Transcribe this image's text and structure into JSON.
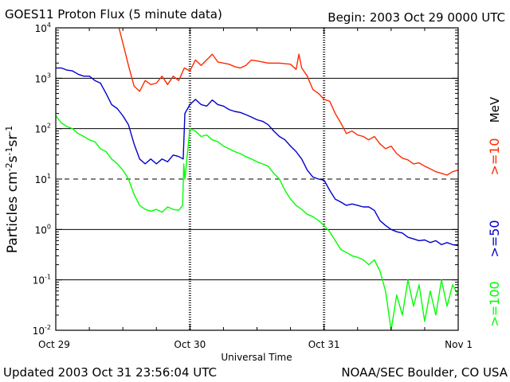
{
  "header": {
    "title": "GOES11 Proton Flux (5 minute data)",
    "begin": "Begin: 2003 Oct 29 0000 UTC"
  },
  "footer": {
    "updated": "Updated 2003 Oct 31 23:56:04 UTC",
    "credit": "NOAA/SEC Boulder, CO USA"
  },
  "chart_data": {
    "type": "line",
    "title": "GOES11 Proton Flux (5 minute data)",
    "xlabel": "Universal Time",
    "ylabel": "Particles cm⁻²s⁻¹sr⁻¹",
    "yscale": "log",
    "ylim": [
      0.01,
      10000
    ],
    "xlim": [
      0,
      72
    ],
    "x_unit": "hours since 2003 Oct 29 0000 UTC",
    "x_ticks": [
      {
        "x": 0,
        "label": "Oct 29"
      },
      {
        "x": 24,
        "label": "Oct 30"
      },
      {
        "x": 48,
        "label": "Oct 31"
      },
      {
        "x": 72,
        "label": "Nov 1"
      }
    ],
    "y_ticks": [
      {
        "y": 10000,
        "mant": "10",
        "exp": "4"
      },
      {
        "y": 1000,
        "mant": "10",
        "exp": "3"
      },
      {
        "y": 100,
        "mant": "10",
        "exp": "2"
      },
      {
        "y": 10,
        "mant": "10",
        "exp": "1"
      },
      {
        "y": 1,
        "mant": "10",
        "exp": "0"
      },
      {
        "y": 0.1,
        "mant": "10",
        "exp": "-1"
      },
      {
        "y": 0.01,
        "mant": "10",
        "exp": "-2"
      }
    ],
    "reference_lines": [
      {
        "y": 1000,
        "style": "solid"
      },
      {
        "y": 100,
        "style": "solid"
      },
      {
        "y": 10,
        "style": "dashed"
      },
      {
        "y": 1,
        "style": "solid"
      },
      {
        "y": 0.1,
        "style": "solid"
      }
    ],
    "units_label": "MeV",
    "series": [
      {
        "name": ">=10",
        "color": "#ff2a00",
        "points": [
          [
            11.3,
            10000
          ],
          [
            12,
            5000
          ],
          [
            13,
            1800
          ],
          [
            14,
            700
          ],
          [
            15,
            550
          ],
          [
            16,
            900
          ],
          [
            17,
            750
          ],
          [
            18,
            800
          ],
          [
            19,
            1100
          ],
          [
            20,
            750
          ],
          [
            21,
            1100
          ],
          [
            22,
            900
          ],
          [
            23,
            1600
          ],
          [
            24,
            1400
          ],
          [
            25,
            2300
          ],
          [
            26,
            1800
          ],
          [
            28,
            3000
          ],
          [
            29,
            2100
          ],
          [
            30,
            2000
          ],
          [
            31,
            1900
          ],
          [
            32,
            1700
          ],
          [
            33,
            1600
          ],
          [
            34,
            1800
          ],
          [
            35,
            2300
          ],
          [
            36,
            2200
          ],
          [
            38,
            2000
          ],
          [
            40,
            2000
          ],
          [
            42,
            1900
          ],
          [
            43,
            1500
          ],
          [
            43.5,
            3000
          ],
          [
            44,
            1600
          ],
          [
            45,
            1100
          ],
          [
            46,
            600
          ],
          [
            47,
            500
          ],
          [
            48,
            380
          ],
          [
            49,
            350
          ],
          [
            50,
            200
          ],
          [
            51,
            130
          ],
          [
            52,
            80
          ],
          [
            53,
            90
          ],
          [
            54,
            75
          ],
          [
            55,
            70
          ],
          [
            56,
            60
          ],
          [
            57,
            70
          ],
          [
            58,
            50
          ],
          [
            59,
            40
          ],
          [
            60,
            45
          ],
          [
            61,
            32
          ],
          [
            62,
            26
          ],
          [
            63,
            24
          ],
          [
            64,
            20
          ],
          [
            65,
            21
          ],
          [
            66,
            18
          ],
          [
            67,
            16
          ],
          [
            68,
            14
          ],
          [
            69,
            13
          ],
          [
            70,
            12
          ],
          [
            71,
            14
          ],
          [
            72,
            15
          ]
        ]
      },
      {
        "name": ">=50",
        "color": "#0000cc",
        "points": [
          [
            0,
            1600
          ],
          [
            1,
            1600
          ],
          [
            2,
            1450
          ],
          [
            3,
            1400
          ],
          [
            4,
            1200
          ],
          [
            5,
            1100
          ],
          [
            6,
            1100
          ],
          [
            7,
            900
          ],
          [
            8,
            800
          ],
          [
            9,
            500
          ],
          [
            10,
            300
          ],
          [
            11,
            250
          ],
          [
            12,
            180
          ],
          [
            13,
            120
          ],
          [
            14,
            50
          ],
          [
            15,
            25
          ],
          [
            16,
            20
          ],
          [
            17,
            25
          ],
          [
            18,
            20
          ],
          [
            19,
            25
          ],
          [
            20,
            22
          ],
          [
            21,
            30
          ],
          [
            22,
            28
          ],
          [
            22.8,
            25
          ],
          [
            23.1,
            200
          ],
          [
            24,
            300
          ],
          [
            25,
            380
          ],
          [
            26,
            300
          ],
          [
            27,
            280
          ],
          [
            28,
            370
          ],
          [
            29,
            300
          ],
          [
            30,
            280
          ],
          [
            31,
            240
          ],
          [
            32,
            220
          ],
          [
            33,
            210
          ],
          [
            34,
            190
          ],
          [
            35,
            170
          ],
          [
            36,
            150
          ],
          [
            37,
            140
          ],
          [
            38,
            120
          ],
          [
            39,
            90
          ],
          [
            40,
            70
          ],
          [
            41,
            60
          ],
          [
            42,
            45
          ],
          [
            43,
            35
          ],
          [
            44,
            25
          ],
          [
            45,
            15
          ],
          [
            46,
            11
          ],
          [
            47,
            10
          ],
          [
            48,
            9.5
          ],
          [
            49,
            6
          ],
          [
            50,
            4
          ],
          [
            51,
            3.5
          ],
          [
            52,
            3
          ],
          [
            53,
            3.2
          ],
          [
            54,
            3
          ],
          [
            55,
            2.8
          ],
          [
            56,
            2.8
          ],
          [
            57,
            2.4
          ],
          [
            58,
            1.5
          ],
          [
            59,
            1.2
          ],
          [
            60,
            1
          ],
          [
            61,
            0.9
          ],
          [
            62,
            0.85
          ],
          [
            63,
            0.7
          ],
          [
            64,
            0.65
          ],
          [
            65,
            0.6
          ],
          [
            66,
            0.62
          ],
          [
            67,
            0.55
          ],
          [
            68,
            0.6
          ],
          [
            69,
            0.5
          ],
          [
            70,
            0.55
          ],
          [
            71,
            0.5
          ],
          [
            72,
            0.48
          ]
        ]
      },
      {
        "name": ">=100",
        "color": "#00ff00",
        "points": [
          [
            0,
            180
          ],
          [
            1,
            130
          ],
          [
            2,
            110
          ],
          [
            3,
            100
          ],
          [
            4,
            80
          ],
          [
            5,
            70
          ],
          [
            6,
            60
          ],
          [
            7,
            55
          ],
          [
            8,
            40
          ],
          [
            9,
            35
          ],
          [
            10,
            25
          ],
          [
            11,
            20
          ],
          [
            12,
            15
          ],
          [
            13,
            10
          ],
          [
            14,
            5
          ],
          [
            15,
            3
          ],
          [
            16,
            2.5
          ],
          [
            17,
            2.3
          ],
          [
            18,
            2.5
          ],
          [
            19,
            2.2
          ],
          [
            20,
            2.8
          ],
          [
            21,
            2.5
          ],
          [
            22,
            2.4
          ],
          [
            22.7,
            3
          ],
          [
            22.9,
            20
          ],
          [
            23.1,
            10
          ],
          [
            24,
            100
          ],
          [
            25,
            90
          ],
          [
            26,
            70
          ],
          [
            27,
            75
          ],
          [
            28,
            60
          ],
          [
            29,
            55
          ],
          [
            30,
            45
          ],
          [
            31,
            40
          ],
          [
            32,
            35
          ],
          [
            33,
            32
          ],
          [
            34,
            28
          ],
          [
            35,
            25
          ],
          [
            36,
            22
          ],
          [
            37,
            20
          ],
          [
            38,
            18
          ],
          [
            39,
            13
          ],
          [
            40,
            10
          ],
          [
            41,
            6
          ],
          [
            42,
            4
          ],
          [
            43,
            3
          ],
          [
            44,
            2.5
          ],
          [
            45,
            2
          ],
          [
            46,
            1.8
          ],
          [
            47,
            1.5
          ],
          [
            48,
            1.2
          ],
          [
            49,
            0.9
          ],
          [
            50,
            0.6
          ],
          [
            51,
            0.4
          ],
          [
            52,
            0.35
          ],
          [
            53,
            0.3
          ],
          [
            54,
            0.28
          ],
          [
            55,
            0.25
          ],
          [
            56,
            0.2
          ],
          [
            57,
            0.25
          ],
          [
            58,
            0.15
          ],
          [
            59,
            0.06
          ],
          [
            60,
            0.01
          ],
          [
            61,
            0.05
          ],
          [
            62,
            0.02
          ],
          [
            63,
            0.1
          ],
          [
            64,
            0.03
          ],
          [
            65,
            0.08
          ],
          [
            66,
            0.015
          ],
          [
            67,
            0.06
          ],
          [
            68,
            0.02
          ],
          [
            69,
            0.1
          ],
          [
            70,
            0.03
          ],
          [
            71,
            0.08
          ],
          [
            72,
            0.05
          ]
        ]
      }
    ]
  }
}
